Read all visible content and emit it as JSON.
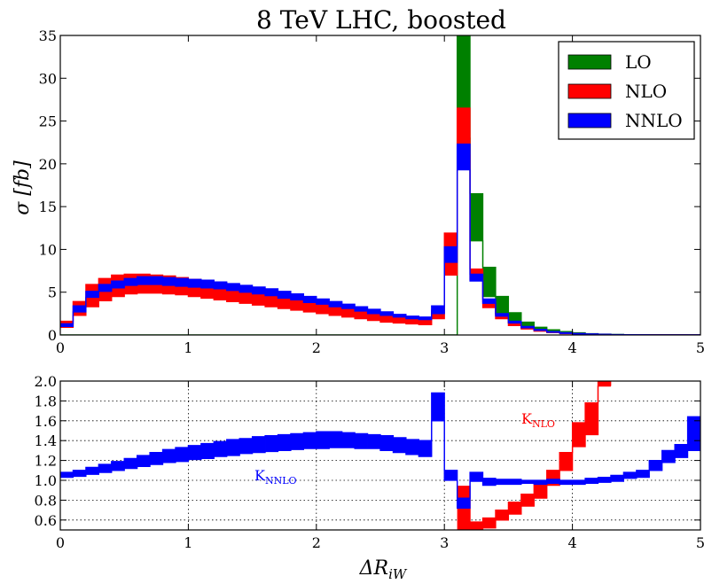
{
  "chart_data": [
    {
      "type": "area",
      "title": "8 TeV LHC, boosted",
      "xlabel": "ΔR",
      "xlabel_sub": "iW",
      "ylabel": "σ [fb]",
      "xlim": [
        0,
        5
      ],
      "ylim": [
        0,
        35
      ],
      "xticks": [
        "0",
        "1",
        "2",
        "3",
        "4",
        "5"
      ],
      "yticks": [
        "0",
        "5",
        "10",
        "15",
        "20",
        "25",
        "30",
        "35"
      ],
      "legend_position": "top-right",
      "grid": false,
      "bin_width": 0.1,
      "x": [
        0.0,
        0.1,
        0.2,
        0.3,
        0.4,
        0.5,
        0.6,
        0.7,
        0.8,
        0.9,
        1.0,
        1.1,
        1.2,
        1.3,
        1.4,
        1.5,
        1.6,
        1.7,
        1.8,
        1.9,
        2.0,
        2.1,
        2.2,
        2.3,
        2.4,
        2.5,
        2.6,
        2.7,
        2.8,
        2.9,
        3.0,
        3.1,
        3.2,
        3.3,
        3.4,
        3.5,
        3.6,
        3.7,
        3.8,
        3.9,
        4.0,
        4.1,
        4.2,
        4.3,
        4.4,
        4.5,
        4.6,
        4.7,
        4.8,
        4.9
      ],
      "series": [
        {
          "name": "LO",
          "color": "#008000",
          "lo": [
            0,
            0,
            0,
            0,
            0,
            0,
            0,
            0,
            0,
            0,
            0,
            0,
            0,
            0,
            0,
            0,
            0,
            0,
            0,
            0,
            0,
            0,
            0,
            0,
            0,
            0,
            0,
            0,
            0,
            0,
            0,
            23.0,
            11.0,
            4.5,
            2.5,
            1.4,
            0.8,
            0.5,
            0.3,
            0.2,
            0.1,
            0.07,
            0.05,
            0.03,
            0.02,
            0.01,
            0.01,
            0.005,
            0.005,
            0.003
          ],
          "hi": [
            0,
            0,
            0,
            0,
            0,
            0,
            0,
            0,
            0,
            0,
            0,
            0,
            0,
            0,
            0,
            0,
            0,
            0,
            0,
            0,
            0,
            0,
            0,
            0,
            0,
            0,
            0,
            0,
            0,
            0,
            0,
            35.0,
            16.5,
            7.9,
            4.5,
            2.6,
            1.5,
            0.9,
            0.6,
            0.4,
            0.25,
            0.15,
            0.1,
            0.06,
            0.04,
            0.03,
            0.02,
            0.01,
            0.01,
            0.006
          ]
        },
        {
          "name": "NLO",
          "color": "#ff0000",
          "lo": [
            0.9,
            2.3,
            3.3,
            4.0,
            4.5,
            4.8,
            4.9,
            4.9,
            4.8,
            4.7,
            4.5,
            4.3,
            4.1,
            3.9,
            3.7,
            3.5,
            3.3,
            3.1,
            2.9,
            2.7,
            2.5,
            2.3,
            2.1,
            1.9,
            1.7,
            1.5,
            1.4,
            1.3,
            1.2,
            1.9,
            7.0,
            21.0,
            6.5,
            3.2,
            1.9,
            1.1,
            0.7,
            0.45,
            0.3,
            0.2,
            0.12,
            0.08,
            0.05,
            0.03,
            0.02,
            0.015,
            0.01,
            0.006,
            0.004,
            0.003
          ],
          "hi": [
            1.6,
            3.9,
            5.9,
            6.6,
            7.0,
            7.1,
            7.1,
            7.0,
            6.9,
            6.7,
            6.5,
            6.3,
            6.1,
            5.9,
            5.6,
            5.3,
            5.0,
            4.7,
            4.4,
            4.1,
            3.8,
            3.5,
            3.2,
            2.9,
            2.6,
            2.3,
            2.1,
            2.0,
            1.9,
            2.9,
            11.9,
            26.5,
            7.7,
            3.9,
            2.3,
            1.4,
            0.9,
            0.55,
            0.37,
            0.24,
            0.15,
            0.1,
            0.06,
            0.04,
            0.025,
            0.018,
            0.012,
            0.008,
            0.005,
            0.004
          ]
        },
        {
          "name": "NNLO",
          "color": "#0000ff",
          "lo": [
            1.0,
            2.7,
            4.4,
            5.1,
            5.5,
            5.8,
            5.9,
            5.9,
            5.8,
            5.7,
            5.6,
            5.5,
            5.4,
            5.2,
            5.0,
            4.8,
            4.6,
            4.3,
            4.1,
            3.8,
            3.6,
            3.3,
            3.1,
            2.8,
            2.5,
            2.3,
            2.1,
            1.9,
            1.8,
            2.5,
            8.5,
            19.3,
            6.3,
            3.7,
            2.2,
            1.4,
            0.85,
            0.55,
            0.35,
            0.23,
            0.15,
            0.1,
            0.06,
            0.04,
            0.025,
            0.018,
            0.012,
            0.008,
            0.005,
            0.004
          ],
          "hi": [
            1.3,
            3.4,
            5.1,
            5.9,
            6.3,
            6.6,
            6.8,
            6.8,
            6.7,
            6.6,
            6.5,
            6.4,
            6.2,
            6.0,
            5.8,
            5.6,
            5.4,
            5.1,
            4.8,
            4.5,
            4.2,
            3.9,
            3.6,
            3.3,
            3.0,
            2.7,
            2.4,
            2.2,
            2.1,
            3.4,
            10.3,
            22.3,
            7.1,
            4.2,
            2.5,
            1.6,
            1.0,
            0.65,
            0.4,
            0.27,
            0.17,
            0.11,
            0.07,
            0.045,
            0.03,
            0.02,
            0.014,
            0.009,
            0.006,
            0.004
          ]
        }
      ]
    },
    {
      "type": "area",
      "xlim": [
        0,
        5
      ],
      "ylim": [
        0.5,
        2.0
      ],
      "xticks": [
        "0",
        "1",
        "2",
        "3",
        "4",
        "5"
      ],
      "yticks": [
        "0.6",
        "0.8",
        "1.0",
        "1.2",
        "1.4",
        "1.6",
        "1.8",
        "2.0"
      ],
      "grid": true,
      "bin_width": 0.1,
      "x": [
        0.0,
        0.1,
        0.2,
        0.3,
        0.4,
        0.5,
        0.6,
        0.7,
        0.8,
        0.9,
        1.0,
        1.1,
        1.2,
        1.3,
        1.4,
        1.5,
        1.6,
        1.7,
        1.8,
        1.9,
        2.0,
        2.1,
        2.2,
        2.3,
        2.4,
        2.5,
        2.6,
        2.7,
        2.8,
        2.9,
        3.0,
        3.1,
        3.2,
        3.3,
        3.4,
        3.5,
        3.6,
        3.7,
        3.8,
        3.9,
        4.0,
        4.1,
        4.2,
        4.3,
        4.4,
        4.5,
        4.6,
        4.7,
        4.8,
        4.9
      ],
      "series": [
        {
          "name": "K_NLO",
          "label": "K",
          "label_sub": "NLO",
          "color": "#ff0000",
          "lo": [
            null,
            null,
            null,
            null,
            null,
            null,
            null,
            null,
            null,
            null,
            null,
            null,
            null,
            null,
            null,
            null,
            null,
            null,
            null,
            null,
            null,
            null,
            null,
            null,
            null,
            null,
            null,
            null,
            null,
            null,
            null,
            0.5,
            0.5,
            0.52,
            0.6,
            0.66,
            0.74,
            0.82,
            0.95,
            1.1,
            1.34,
            1.46,
            1.95,
            null,
            null,
            null,
            null,
            null,
            null,
            null
          ],
          "hi": [
            null,
            null,
            null,
            null,
            null,
            null,
            null,
            null,
            null,
            null,
            null,
            null,
            null,
            null,
            null,
            null,
            null,
            null,
            null,
            null,
            null,
            null,
            null,
            null,
            null,
            null,
            null,
            null,
            null,
            null,
            null,
            0.94,
            0.58,
            0.62,
            0.7,
            0.78,
            0.86,
            0.96,
            1.1,
            1.28,
            1.58,
            1.78,
            2.0,
            null,
            null,
            null,
            null,
            null,
            null,
            null
          ]
        },
        {
          "name": "K_NNLO",
          "label": "K",
          "label_sub": "NNLO",
          "color": "#0000ff",
          "lo": [
            1.03,
            1.04,
            1.06,
            1.08,
            1.1,
            1.12,
            1.14,
            1.16,
            1.18,
            1.19,
            1.21,
            1.22,
            1.24,
            1.25,
            1.27,
            1.28,
            1.29,
            1.3,
            1.31,
            1.32,
            1.32,
            1.33,
            1.33,
            1.32,
            1.32,
            1.3,
            1.28,
            1.26,
            1.24,
            1.6,
            1.0,
            0.72,
            0.99,
            0.95,
            0.96,
            0.96,
            0.97,
            0.96,
            0.97,
            0.96,
            0.96,
            0.97,
            0.98,
            0.99,
            1.02,
            1.03,
            1.1,
            1.18,
            1.23,
            1.3
          ],
          "hi": [
            1.08,
            1.1,
            1.13,
            1.16,
            1.19,
            1.22,
            1.25,
            1.28,
            1.31,
            1.33,
            1.35,
            1.37,
            1.39,
            1.41,
            1.42,
            1.44,
            1.45,
            1.46,
            1.47,
            1.48,
            1.49,
            1.49,
            1.48,
            1.47,
            1.46,
            1.45,
            1.43,
            1.41,
            1.4,
            1.88,
            1.1,
            0.82,
            1.08,
            1.02,
            1.01,
            1.01,
            1.0,
            1.0,
            1.01,
            1.0,
            1.0,
            1.02,
            1.03,
            1.05,
            1.08,
            1.1,
            1.2,
            1.3,
            1.36,
            1.64
          ]
        }
      ]
    }
  ]
}
